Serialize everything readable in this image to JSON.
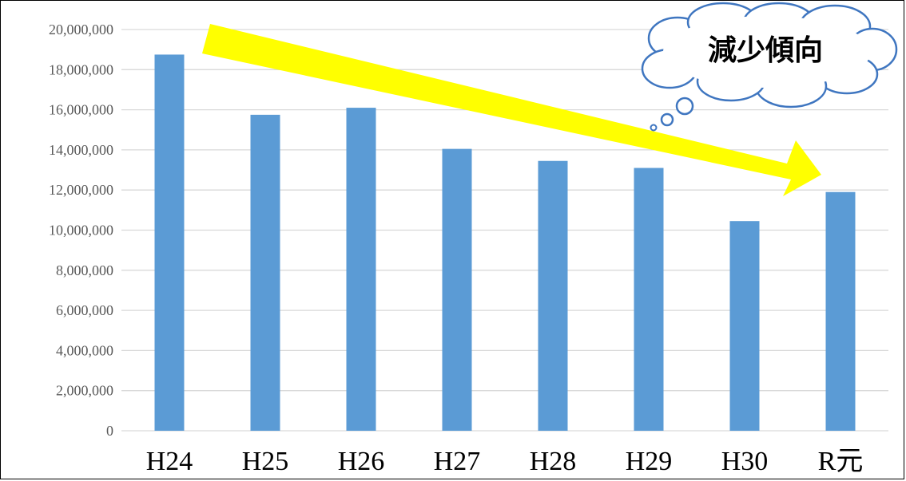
{
  "chart_data": {
    "type": "bar",
    "categories": [
      "H24",
      "H25",
      "H26",
      "H27",
      "H28",
      "H29",
      "H30",
      "R元"
    ],
    "values": [
      18750000,
      15750000,
      16100000,
      14050000,
      13450000,
      13100000,
      10450000,
      11900000
    ],
    "ylim": [
      0,
      20000000
    ],
    "yticks": [
      "0",
      "2,000,000",
      "4,000,000",
      "6,000,000",
      "8,000,000",
      "10,000,000",
      "12,000,000",
      "14,000,000",
      "16,000,000",
      "18,000,000",
      "20,000,000"
    ],
    "grid": true,
    "bar_color": "#5b9bd5",
    "title": "",
    "xlabel": "",
    "ylabel": ""
  },
  "annotation": {
    "callout_text": "減少傾向",
    "arrow_color": "#ffff00",
    "arrow_meaning": "decreasing trend"
  }
}
